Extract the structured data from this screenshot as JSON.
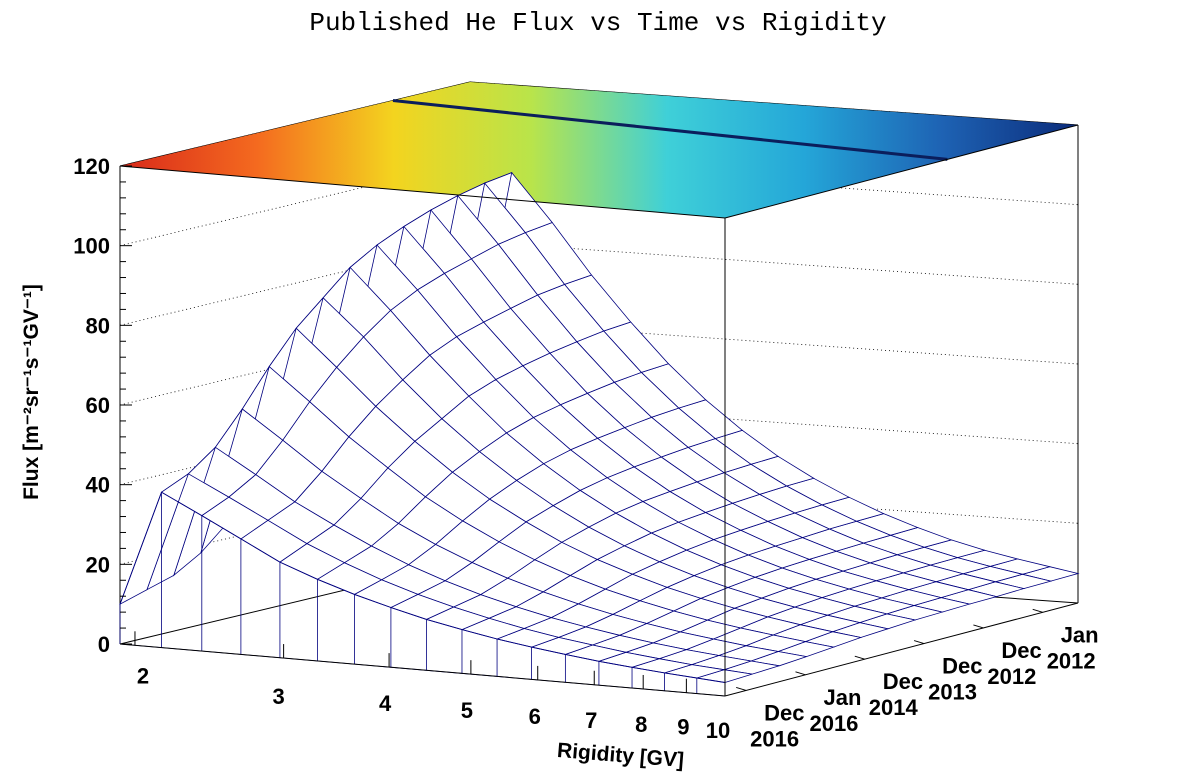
{
  "chart_data": {
    "type": "surface3d",
    "title": "Published He Flux vs Time vs Rigidity",
    "zlabel": "Flux [m⁻²sr⁻¹s⁻¹GV⁻¹]",
    "xlabel": "Rigidity [GV]",
    "ylabel": "",
    "xscale": "log",
    "xlim": [
      1.92,
      10
    ],
    "x_ticks": [
      "2",
      "3",
      "4",
      "5",
      "6",
      "7",
      "8",
      "9",
      "10"
    ],
    "zlim": [
      0,
      120
    ],
    "z_ticks": [
      "0",
      "20",
      "40",
      "60",
      "80",
      "100",
      "120"
    ],
    "y_ticks": [
      "Dec 2016",
      "Jan 2016",
      "Dec 2014",
      "Dec 2013",
      "Dec 2012",
      "Jan 2012"
    ],
    "grid": true,
    "colormap": [
      "#0b2b7a",
      "#1e63b4",
      "#24a6d8",
      "#3fd0d8",
      "#b9e44a",
      "#f3d41f",
      "#f46a1f",
      "#d8291a"
    ],
    "wire_color": "#00007f",
    "x": [
      1.92,
      2.15,
      2.4,
      2.67,
      2.97,
      3.29,
      3.64,
      4.02,
      4.43,
      4.88,
      5.37,
      5.9,
      6.47,
      7.09,
      7.76,
      8.48,
      9.26,
      10.0
    ],
    "series": [
      {
        "values": [
          10,
          39,
          34,
          29,
          24,
          20.5,
          17.5,
          15,
          12.8,
          11,
          9.4,
          8.1,
          7.0,
          6.0,
          5.2,
          4.5,
          3.9,
          3.4
        ]
      },
      {
        "values": [
          12,
          42,
          37,
          32,
          27,
          23,
          19.5,
          16.6,
          14.2,
          12.1,
          10.3,
          8.8,
          7.6,
          6.5,
          5.6,
          4.8,
          4.2,
          3.7
        ]
      },
      {
        "values": [
          14,
          47,
          41,
          35,
          30,
          25.5,
          21.6,
          18.3,
          15.6,
          13.3,
          11.3,
          9.7,
          8.3,
          7.1,
          6.1,
          5.3,
          4.6,
          4.0
        ]
      },
      {
        "values": [
          18,
          55,
          48,
          41,
          35,
          29.5,
          25,
          21.2,
          18,
          15.3,
          13,
          11.1,
          9.5,
          8.1,
          7.0,
          6.0,
          5.2,
          4.5
        ]
      },
      {
        "values": [
          24,
          64,
          56,
          48,
          41,
          34.5,
          29.2,
          24.7,
          20.9,
          17.7,
          15,
          12.8,
          10.9,
          9.3,
          8.0,
          6.9,
          5.9,
          5.1
        ]
      },
      {
        "values": [
          30,
          72,
          63,
          54,
          46,
          39,
          33,
          28,
          23.6,
          20,
          17,
          14.4,
          12.3,
          10.5,
          9.0,
          7.7,
          6.6,
          5.7
        ]
      },
      {
        "values": [
          35,
          78,
          69,
          59,
          50,
          42.5,
          36,
          30.4,
          25.7,
          21.7,
          18.4,
          15.6,
          13.3,
          11.3,
          9.7,
          8.3,
          7.1,
          6.1
        ]
      },
      {
        "values": [
          38,
          84,
          74,
          63.5,
          54,
          45.5,
          38.5,
          32.5,
          27.5,
          23.2,
          19.6,
          16.6,
          14.1,
          12.0,
          10.3,
          8.8,
          7.5,
          6.5
        ]
      },
      {
        "values": [
          40,
          88,
          77.5,
          66.5,
          56.5,
          47.7,
          40.3,
          34,
          28.7,
          24.2,
          20.5,
          17.3,
          14.7,
          12.5,
          10.7,
          9.1,
          7.8,
          6.7
        ]
      },
      {
        "values": [
          42,
          91,
          80,
          68.5,
          58.3,
          49.2,
          41.5,
          35,
          29.5,
          24.9,
          21.1,
          17.8,
          15.1,
          12.8,
          11.0,
          9.4,
          8.0,
          6.9
        ]
      },
      {
        "values": [
          42,
          93.5,
          82,
          70.3,
          59.8,
          50.4,
          42.5,
          35.8,
          30.2,
          25.5,
          21.6,
          18.2,
          15.4,
          13.1,
          11.2,
          9.6,
          8.2,
          7.0
        ]
      },
      {
        "values": [
          43,
          95.5,
          84,
          72,
          61,
          51.5,
          43.4,
          36.5,
          30.8,
          26,
          22,
          18.6,
          15.7,
          13.4,
          11.4,
          9.8,
          8.4,
          7.2
        ]
      },
      {
        "values": [
          43,
          97,
          85.3,
          73,
          62,
          52.3,
          44,
          37,
          31.2,
          26.4,
          22.3,
          18.8,
          15.9,
          13.5,
          11.5,
          9.9,
          8.5,
          7.3
        ]
      },
      {
        "values": [
          43,
          98,
          86.2,
          73.7,
          62.6,
          52.8,
          44.4,
          37.4,
          31.5,
          26.6,
          22.5,
          19,
          16.1,
          13.6,
          11.6,
          10.0,
          8.6,
          7.4
        ]
      }
    ]
  }
}
